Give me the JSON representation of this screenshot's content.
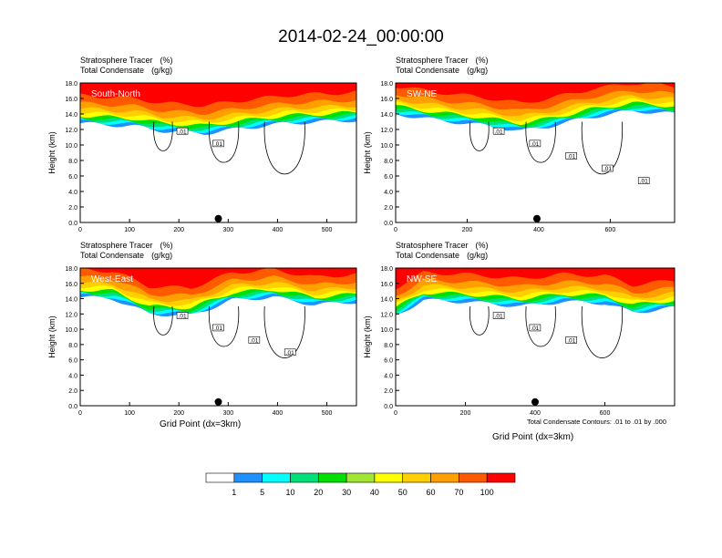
{
  "title": "2014-02-24_00:00:00",
  "panel_header": {
    "line1_label": "Stratosphere Tracer",
    "line1_unit": "(%)",
    "line2_label": "Total Condensate",
    "line2_unit": "(g/kg)"
  },
  "y_axis_label": "Height (km)",
  "x_axis_label": "Grid Point (dx=3km)",
  "contour_note": "Total Condensate Contours: .01 to .01 by .000",
  "colors": {
    "levels": [
      "#ffffff",
      "#1e90ff",
      "#00ffff",
      "#00e07a",
      "#00e000",
      "#a0e632",
      "#ffff00",
      "#ffd000",
      "#ffa000",
      "#ff5a00",
      "#ff0000"
    ]
  },
  "colorbar": {
    "labels": [
      "1",
      "5",
      "10",
      "20",
      "30",
      "40",
      "50",
      "60",
      "70",
      "100"
    ]
  },
  "chart_data": [
    {
      "type": "heatmap",
      "cross_section": "South-North",
      "x_ticks": [
        "0",
        "100",
        "200",
        "300",
        "400",
        "500"
      ],
      "xlim": [
        0,
        560
      ],
      "y_ticks": [
        "0.0",
        "2.0",
        "4.0",
        "6.0",
        "8.0",
        "10.0",
        "12.0",
        "14.0",
        "16.0",
        "18.0"
      ],
      "ylim": [
        0,
        18
      ],
      "marker_x": 280,
      "contour_labels": [
        ".01",
        ".01"
      ],
      "tracer_base_km": 12.5
    },
    {
      "type": "heatmap",
      "cross_section": "SW-NE",
      "x_ticks": [
        "0",
        "200",
        "400",
        "600"
      ],
      "xlim": [
        0,
        780
      ],
      "y_ticks": [
        "0.0",
        "2.0",
        "4.0",
        "6.0",
        "8.0",
        "10.0",
        "12.0",
        "14.0",
        "16.0",
        "18.0"
      ],
      "ylim": [
        0,
        18
      ],
      "marker_x": 395,
      "contour_labels": [
        ".01",
        ".01",
        ".01",
        ".01",
        ".01"
      ],
      "tracer_base_km": 13.0
    },
    {
      "type": "heatmap",
      "cross_section": "West-East",
      "x_ticks": [
        "0",
        "100",
        "200",
        "300",
        "400",
        "500"
      ],
      "xlim": [
        0,
        560
      ],
      "y_ticks": [
        "0.0",
        "2.0",
        "4.0",
        "6.0",
        "8.0",
        "10.0",
        "12.0",
        "14.0",
        "16.0",
        "18.0"
      ],
      "ylim": [
        0,
        18
      ],
      "marker_x": 280,
      "contour_labels": [
        ".01",
        ".01",
        ".01",
        ".01"
      ],
      "tracer_base_km": 13.0
    },
    {
      "type": "heatmap",
      "cross_section": "NW-SE",
      "x_ticks": [
        "0",
        "200",
        "400",
        "600"
      ],
      "xlim": [
        0,
        800
      ],
      "y_ticks": [
        "0.0",
        "2.0",
        "4.0",
        "6.0",
        "8.0",
        "10.0",
        "12.0",
        "14.0",
        "16.0",
        "18.0"
      ],
      "ylim": [
        0,
        18
      ],
      "marker_x": 400,
      "contour_labels": [
        ".01",
        ".01",
        ".01"
      ],
      "tracer_base_km": 13.0
    }
  ]
}
